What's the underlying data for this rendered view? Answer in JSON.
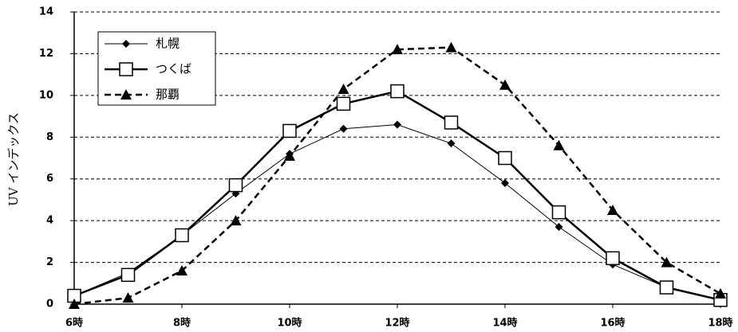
{
  "chart_data": {
    "type": "line",
    "y_label": "UV インデックス",
    "x": [
      6,
      7,
      8,
      9,
      10,
      11,
      12,
      13,
      14,
      15,
      16,
      17,
      18
    ],
    "xlim": [
      6,
      18
    ],
    "xticks": [
      {
        "value": 6,
        "label": "6時"
      },
      {
        "value": 8,
        "label": "8時"
      },
      {
        "value": 10,
        "label": "10時"
      },
      {
        "value": 12,
        "label": "12時"
      },
      {
        "value": 14,
        "label": "14時"
      },
      {
        "value": 16,
        "label": "16時"
      },
      {
        "value": 18,
        "label": "18時"
      }
    ],
    "ylim": [
      0,
      14
    ],
    "yticks": [
      0,
      2,
      4,
      6,
      8,
      10,
      12,
      14
    ],
    "grid": true,
    "legend": "upper left",
    "series": [
      {
        "name": "札幌",
        "color": "#000000",
        "marker": "diamond",
        "line_style": "solid-thin",
        "values": [
          0.4,
          1.5,
          3.3,
          5.3,
          7.2,
          8.4,
          8.6,
          7.7,
          5.8,
          3.7,
          1.9,
          0.8,
          0.2
        ]
      },
      {
        "name": "つくば",
        "color": "#000000",
        "marker": "square",
        "line_style": "solid-thick",
        "values": [
          0.4,
          1.4,
          3.3,
          5.7,
          8.3,
          9.6,
          10.2,
          8.7,
          7.0,
          4.4,
          2.2,
          0.8,
          0.2
        ]
      },
      {
        "name": "那覇",
        "color": "#000000",
        "marker": "triangle",
        "line_style": "dashed",
        "values": [
          0,
          0.3,
          1.6,
          4.0,
          7.1,
          10.3,
          12.2,
          12.3,
          10.5,
          7.6,
          4.5,
          2.0,
          0.5
        ]
      }
    ]
  }
}
